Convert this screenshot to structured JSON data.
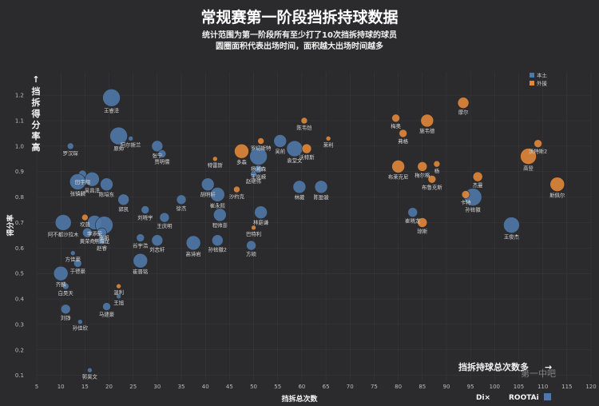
{
  "chart_data": {
    "type": "scatter",
    "title": "常规赛第一阶段挡拆持球数据",
    "subtitle": [
      "统计范围为第一阶段所有至少打了10次挡拆持球的球员",
      "圆圈面积代表出场时间，面积越大出场时间越多"
    ],
    "xlabel": "挡拆总次数",
    "ylabel": "得分率",
    "y_annotation": "挡拆得分率高",
    "x_annotation": "挡拆持球总次数多",
    "xlim": [
      5,
      120
    ],
    "ylim": [
      0.08,
      1.26
    ],
    "x_ticks": [
      5,
      10,
      15,
      20,
      25,
      30,
      35,
      40,
      45,
      50,
      55,
      60,
      65,
      70,
      75,
      80,
      85,
      90,
      95,
      100,
      105,
      110,
      115,
      120
    ],
    "y_ticks": [
      0.1,
      0.2,
      0.3,
      0.4,
      0.5,
      0.6,
      0.7,
      0.8,
      0.9,
      1.0,
      1.1,
      1.2
    ],
    "legend": {
      "position": "top-right",
      "entries": [
        {
          "name": "本土",
          "color": "#4f78a8"
        },
        {
          "name": "外援",
          "color": "#e0873a"
        }
      ]
    },
    "colors": {
      "本土": "#4f78a8",
      "外援": "#e0873a"
    },
    "series": [
      {
        "name": "本土",
        "points": [
          {
            "label": "王睿泽",
            "x": 20.5,
            "y": 1.19,
            "size": 11
          },
          {
            "label": "原帅",
            "x": 22,
            "y": 1.04,
            "size": 11
          },
          {
            "label": "阿尔斯兰",
            "x": 24.5,
            "y": 1.03,
            "size": 3
          },
          {
            "label": "罗汉琛",
            "x": 12,
            "y": 1.0,
            "size": 4
          },
          {
            "label": "张宁",
            "x": 30,
            "y": 1.0,
            "size": 7
          },
          {
            "label": "贾明儒",
            "x": 31,
            "y": 0.97,
            "size": 5
          },
          {
            "label": "田宇翔",
            "x": 14.5,
            "y": 0.89,
            "size": 5
          },
          {
            "label": "吴昌泽",
            "x": 16.5,
            "y": 0.87,
            "size": 9
          },
          {
            "label": "张镇麟",
            "x": 13.5,
            "y": 0.86,
            "size": 10
          },
          {
            "label": "陈培东",
            "x": 19.5,
            "y": 0.85,
            "size": 8
          },
          {
            "label": "郭凯",
            "x": 23,
            "y": 0.79,
            "size": 7
          },
          {
            "label": "刘晓宇",
            "x": 27.5,
            "y": 0.75,
            "size": 5
          },
          {
            "label": "胡明轩",
            "x": 40.5,
            "y": 0.85,
            "size": 8
          },
          {
            "label": "崔永熙",
            "x": 42.5,
            "y": 0.81,
            "size": 9
          },
          {
            "label": "程帅澎",
            "x": 43,
            "y": 0.73,
            "size": 8
          },
          {
            "label": "杨瀚森",
            "x": 51,
            "y": 0.96,
            "size": 11
          },
          {
            "label": "吴前",
            "x": 55.5,
            "y": 1.02,
            "size": 8
          },
          {
            "label": "王岚嵘",
            "x": 51,
            "y": 0.91,
            "size": 5
          },
          {
            "label": "赵继伟",
            "x": 50,
            "y": 0.89,
            "size": 4
          },
          {
            "label": "袁堂文",
            "x": 58.5,
            "y": 0.99,
            "size": 10
          },
          {
            "label": "林葳",
            "x": 59.5,
            "y": 0.84,
            "size": 8
          },
          {
            "label": "陈盈骏",
            "x": 64,
            "y": 0.84,
            "size": 8
          },
          {
            "label": "林庭谦",
            "x": 51.5,
            "y": 0.74,
            "size": 8
          },
          {
            "label": "徐杰",
            "x": 35,
            "y": 0.79,
            "size": 6
          },
          {
            "label": "王庆明",
            "x": 31.5,
            "y": 0.72,
            "size": 6
          },
          {
            "label": "孙铭徽",
            "x": 95.5,
            "y": 0.8,
            "size": 11
          },
          {
            "label": "崔晓龙",
            "x": 83,
            "y": 0.74,
            "size": 6
          },
          {
            "label": "王俊杰",
            "x": 103.5,
            "y": 0.69,
            "size": 10
          },
          {
            "label": "阿不都沙拉木",
            "x": 10.5,
            "y": 0.7,
            "size": 10
          },
          {
            "label": "李添荣",
            "x": 17,
            "y": 0.7,
            "size": 9
          },
          {
            "label": "张帆",
            "x": 19,
            "y": 0.69,
            "size": 11
          },
          {
            "label": "焦海龙",
            "x": 18.5,
            "y": 0.66,
            "size": 6
          },
          {
            "label": "黄荣奇",
            "x": 15.5,
            "y": 0.66,
            "size": 6
          },
          {
            "label": "赵睿",
            "x": 18.5,
            "y": 0.63,
            "size": 5
          },
          {
            "label": "谷宇浩",
            "x": 26.5,
            "y": 0.64,
            "size": 5
          },
          {
            "label": "刘志轩",
            "x": 30,
            "y": 0.63,
            "size": 7
          },
          {
            "label": "高诗岩",
            "x": 37.5,
            "y": 0.62,
            "size": 9
          },
          {
            "label": "孙铭徽2",
            "x": 42.5,
            "y": 0.63,
            "size": 7
          },
          {
            "label": "方硕",
            "x": 49.5,
            "y": 0.61,
            "size": 6
          },
          {
            "label": "方佳豪",
            "x": 12.5,
            "y": 0.58,
            "size": 3
          },
          {
            "label": "于德豪",
            "x": 13.5,
            "y": 0.54,
            "size": 5
          },
          {
            "label": "崔晋铭",
            "x": 26.5,
            "y": 0.55,
            "size": 9
          },
          {
            "label": "齐麟",
            "x": 10,
            "y": 0.5,
            "size": 9
          },
          {
            "label": "白昊天",
            "x": 11,
            "y": 0.45,
            "size": 4
          },
          {
            "label": "王旭",
            "x": 22,
            "y": 0.41,
            "size": 3
          },
          {
            "label": "马建豪",
            "x": 19.5,
            "y": 0.37,
            "size": 5
          },
          {
            "label": "刘铮",
            "x": 11,
            "y": 0.36,
            "size": 6
          },
          {
            "label": "孙佳欣",
            "x": 14,
            "y": 0.31,
            "size": 3
          },
          {
            "label": "郭昊文",
            "x": 16,
            "y": 0.12,
            "size": 3
          }
        ]
      },
      {
        "name": "外援",
        "points": [
          {
            "label": "摩尔",
            "x": 93.5,
            "y": 1.17,
            "size": 7
          },
          {
            "label": "梅奥",
            "x": 79.5,
            "y": 1.11,
            "size": 5
          },
          {
            "label": "施韦德",
            "x": 86,
            "y": 1.1,
            "size": 8
          },
          {
            "label": "弗格",
            "x": 81,
            "y": 1.05,
            "size": 5
          },
          {
            "label": "陈韦恺",
            "x": 60.5,
            "y": 1.1,
            "size": 4
          },
          {
            "label": "罗切斯特",
            "x": 51.5,
            "y": 1.02,
            "size": 4
          },
          {
            "label": "多森",
            "x": 47.5,
            "y": 0.98,
            "size": 9
          },
          {
            "label": "沃特斯",
            "x": 61,
            "y": 0.99,
            "size": 6
          },
          {
            "label": "莱利",
            "x": 65.5,
            "y": 1.03,
            "size": 3
          },
          {
            "label": "沃特斯2",
            "x": 109,
            "y": 1.01,
            "size": 5
          },
          {
            "label": "高登",
            "x": 107,
            "y": 0.96,
            "size": 10
          },
          {
            "label": "杨",
            "x": 88,
            "y": 0.93,
            "size": 4
          },
          {
            "label": "布莱克尼",
            "x": 80,
            "y": 0.92,
            "size": 8
          },
          {
            "label": "布鲁克斯",
            "x": 87,
            "y": 0.87,
            "size": 5
          },
          {
            "label": "杰曼",
            "x": 96.5,
            "y": 0.88,
            "size": 6
          },
          {
            "label": "梅尔格",
            "x": 85,
            "y": 0.92,
            "size": 6
          },
          {
            "label": "卡特",
            "x": 94,
            "y": 0.81,
            "size": 5
          },
          {
            "label": "斯佩尔",
            "x": 113,
            "y": 0.85,
            "size": 9
          },
          {
            "label": "琼斯",
            "x": 85,
            "y": 0.7,
            "size": 6
          },
          {
            "label": "特雷斯",
            "x": 42,
            "y": 0.95,
            "size": 3
          },
          {
            "label": "沙约克",
            "x": 46.5,
            "y": 0.83,
            "size": 4
          },
          {
            "label": "巴特利",
            "x": 50,
            "y": 0.68,
            "size": 3
          },
          {
            "label": "坎普",
            "x": 15,
            "y": 0.72,
            "size": 4
          },
          {
            "label": "温利",
            "x": 22,
            "y": 0.45,
            "size": 3
          }
        ]
      }
    ]
  },
  "legend": {
    "local": "本土",
    "foreign": "外援"
  },
  "branding": {
    "logo": "ROOTAi",
    "sub_logo": "Di×",
    "watermark": "第一中吧"
  },
  "colors": {
    "background": "#2b2b2d",
    "text": "#e9e9e9",
    "grid": "#3b3b3e"
  }
}
